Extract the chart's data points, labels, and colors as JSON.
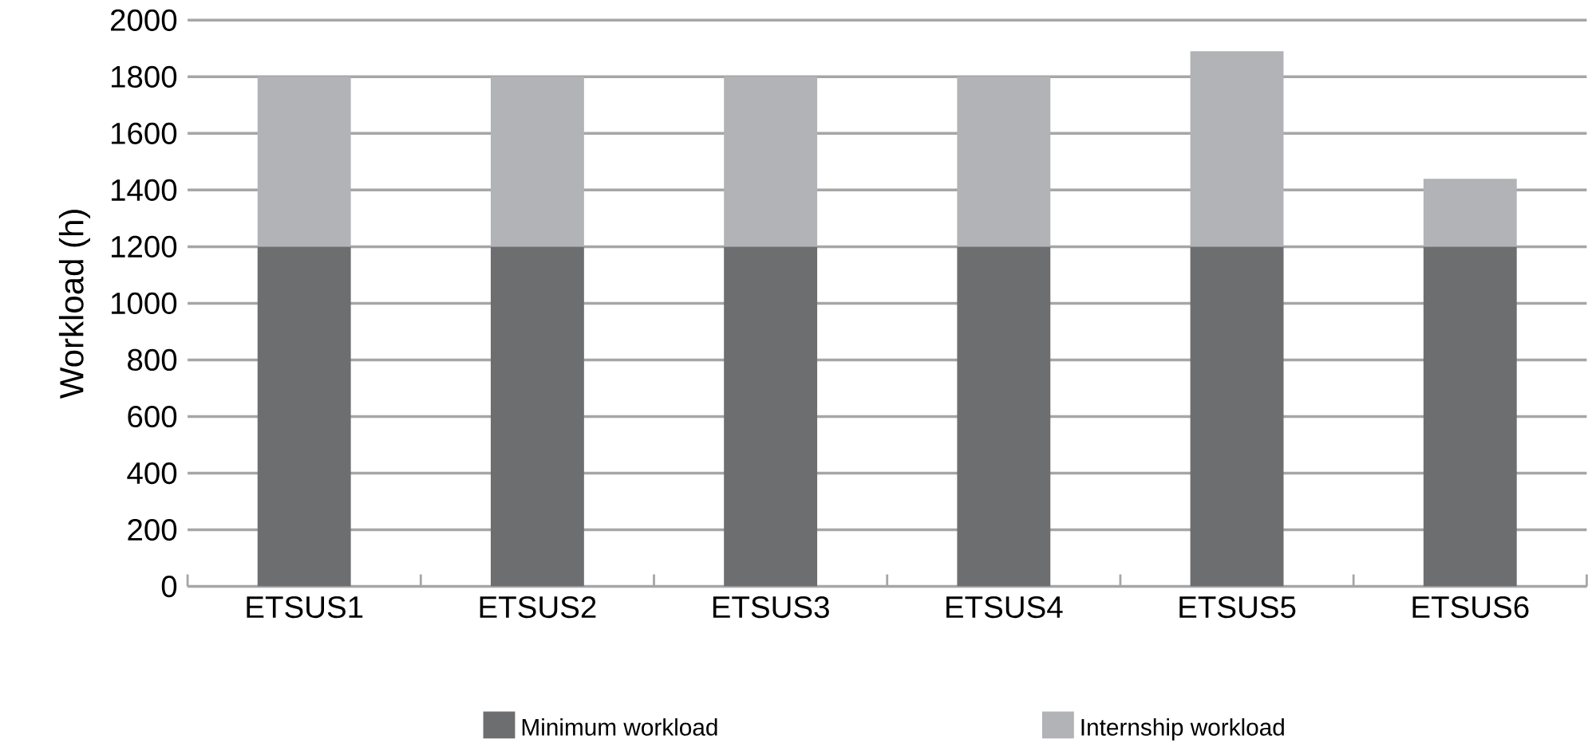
{
  "chart_data": {
    "type": "bar",
    "ylabel": "Workload (h)",
    "categories": [
      "ETSUS1",
      "ETSUS2",
      "ETSUS3",
      "ETSUS4",
      "ETSUS5",
      "ETSUS6"
    ],
    "stacked": true,
    "series": [
      {
        "name": "Minimum workload",
        "color": "#6d6e70",
        "values": [
          1200,
          1200,
          1200,
          1200,
          1200,
          1200
        ]
      },
      {
        "name": "Internship workload",
        "color": "#b2b3b7",
        "values": [
          600,
          600,
          600,
          600,
          690,
          240
        ]
      }
    ],
    "ylim": [
      0,
      2000
    ],
    "yticks": [
      0,
      200,
      400,
      600,
      800,
      1000,
      1200,
      1400,
      1600,
      1800,
      2000
    ],
    "grid": "y",
    "legend": "bottom"
  }
}
